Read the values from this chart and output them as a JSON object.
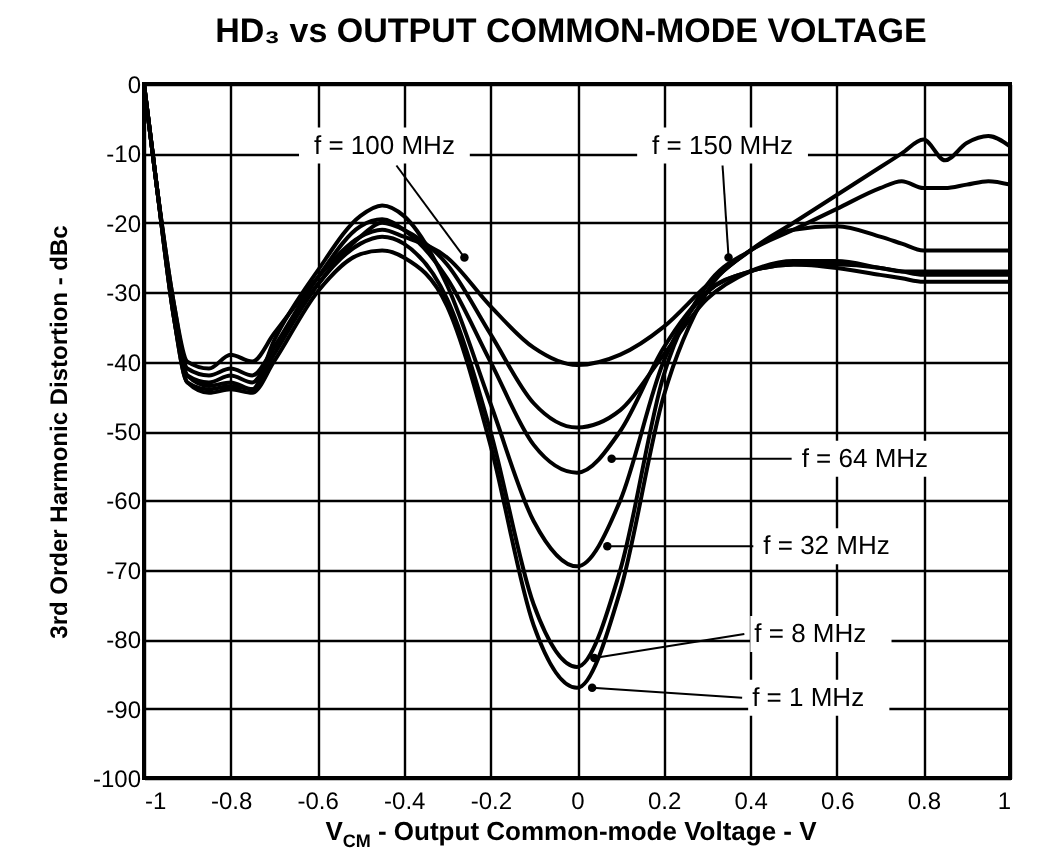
{
  "chart_data": {
    "type": "line",
    "title": "HD₃ vs OUTPUT COMMON-MODE VOLTAGE",
    "xlabel": "V$_{CM}$ - Output Common-mode Voltage - V",
    "ylabel": "3rd Order Harmonic Distortion - dBc",
    "x": [
      -1,
      -0.97,
      -0.93,
      -0.9,
      -0.85,
      -0.8,
      -0.75,
      -0.7,
      -0.6,
      -0.5,
      -0.45,
      -0.4,
      -0.3,
      -0.2,
      -0.1,
      0,
      0.1,
      0.2,
      0.3,
      0.4,
      0.5,
      0.6,
      0.7,
      0.75,
      0.8,
      0.85,
      0.9,
      0.95,
      1
    ],
    "series": [
      {
        "color": "#000000",
        "values": [
          0,
          -15,
          -32,
          -40,
          -41,
          -39,
          -40,
          -36,
          -28,
          -22,
          -21,
          -22,
          -25,
          -32,
          -38,
          -40.5,
          -39,
          -35,
          -29,
          -24,
          -21,
          -20.5,
          -22,
          -23,
          -24,
          -24,
          -24,
          -24,
          -24
        ]
      },
      {
        "color": "#000000",
        "values": [
          0,
          -15,
          -32,
          -41,
          -42,
          -41,
          -42,
          -38,
          -29,
          -22,
          -20,
          -21,
          -26,
          -36,
          -46,
          -49.5,
          -47,
          -39,
          -31,
          -27,
          -25.5,
          -25.5,
          -26.5,
          -27,
          -27.5,
          -27.5,
          -27.5,
          -27.5,
          -27.5
        ]
      },
      {
        "color": "#000000",
        "values": [
          0,
          -15,
          -33,
          -42,
          -43,
          -42,
          -43,
          -38,
          -28,
          -20.5,
          -19.5,
          -21,
          -28,
          -40,
          -52,
          -56,
          -50,
          -38,
          -30,
          -27,
          -26,
          -26.5,
          -27.5,
          -28,
          -28.5,
          -28.5,
          -28.5,
          -28.5,
          -28.5
        ]
      },
      {
        "color": "#000000",
        "values": [
          0,
          -15,
          -34,
          -42,
          -43.5,
          -43,
          -44,
          -37,
          -27,
          -19,
          -17.5,
          -19,
          -29,
          -46,
          -63,
          -69.5,
          -60,
          -40,
          -30,
          -27,
          -26,
          -26,
          -26.5,
          -27,
          -27,
          -27,
          -27,
          -27,
          -27
        ]
      },
      {
        "color": "#000000",
        "values": [
          0,
          -15,
          -34,
          -43,
          -44,
          -43.5,
          -44,
          -39,
          -29,
          -23,
          -22,
          -23,
          -31,
          -50,
          -75,
          -84,
          -70,
          -42,
          -29,
          -24,
          -21,
          -18,
          -15,
          -14,
          -15,
          -15,
          -14.5,
          -14,
          -14.5
        ]
      },
      {
        "color": "#000000",
        "values": [
          0,
          -15,
          -34,
          -43,
          -44.5,
          -44,
          -44.5,
          -40,
          -30,
          -24.5,
          -24,
          -25,
          -32,
          -52,
          -78,
          -87,
          -73,
          -45,
          -30,
          -24,
          -20,
          -16,
          -12,
          -10,
          -8,
          -11,
          -8.5,
          -7.5,
          -9
        ]
      }
    ],
    "annotations": [
      {
        "text": "f = 100 MHz",
        "x": -0.26,
        "y": -25
      },
      {
        "text": "f = 150 MHz",
        "x": 0.35,
        "y": -25
      },
      {
        "text": "f = 64 MHz",
        "x": 0.08,
        "y": -54
      },
      {
        "text": "f = 32 MHz",
        "x": 0.07,
        "y": -66.6
      },
      {
        "text": "f = 8 MHz",
        "x": 0.04,
        "y": -82.7
      },
      {
        "text": "f = 1 MHz",
        "x": 0.035,
        "y": -87
      }
    ],
    "xlim": [
      -1,
      1
    ],
    "xticks": [
      -1,
      -0.8,
      -0.6,
      -0.4,
      -0.2,
      0,
      0.2,
      0.4,
      0.6,
      0.8,
      1
    ],
    "ylim": [
      -100,
      0
    ],
    "yticks": [
      -100,
      -90,
      -80,
      -70,
      -60,
      -50,
      -40,
      -30,
      -20,
      -10,
      0
    ],
    "grid": true,
    "legend": false,
    "marker": "none",
    "line_style": "solid"
  }
}
